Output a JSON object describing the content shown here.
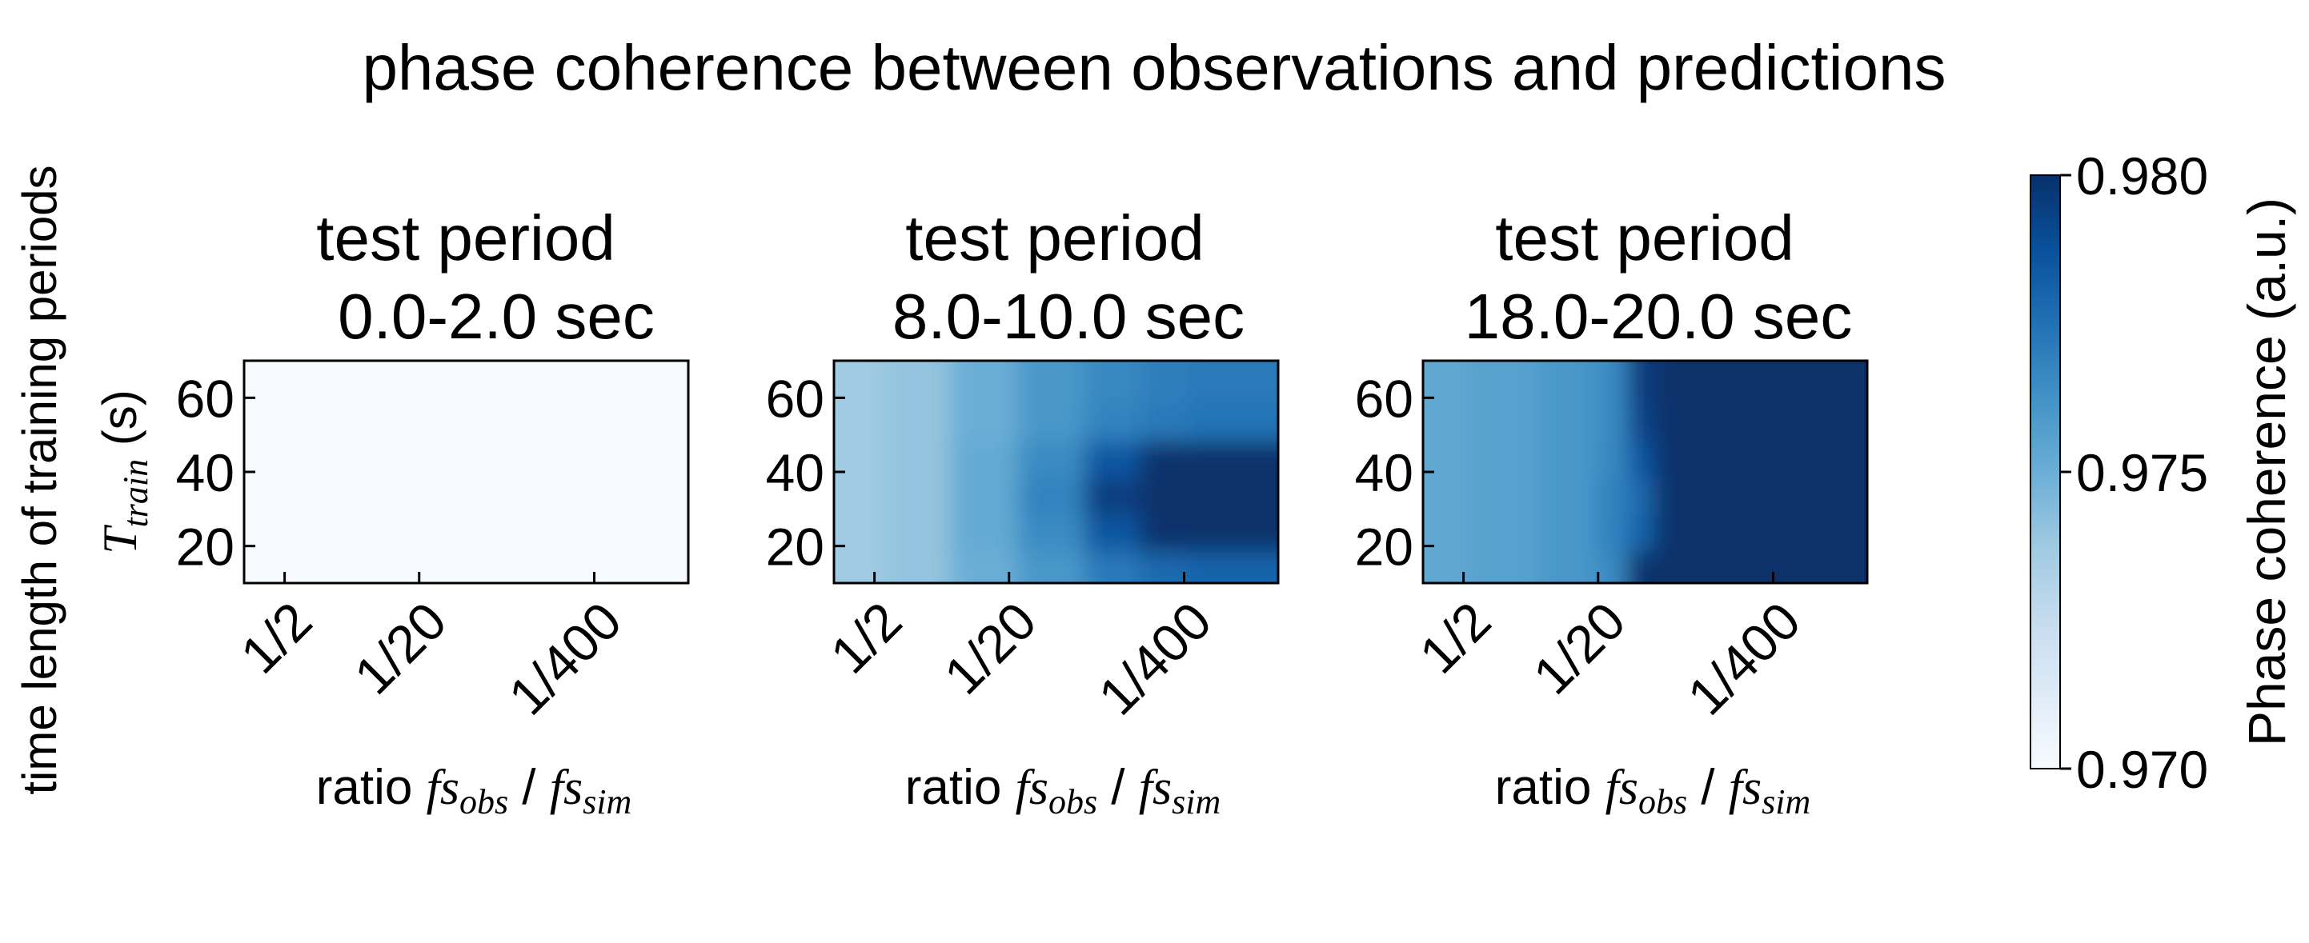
{
  "chart_data": {
    "type": "heatmap",
    "title": "phase coherence between observations and predictions",
    "ylabel": {
      "text": "time length of training periods",
      "var": "T",
      "var_sub": "train",
      "unit": "(s)"
    },
    "xlabel": {
      "prefix": "ratio ",
      "num": "fs",
      "num_sub": "obs",
      "sep": " / ",
      "den": "fs",
      "den_sub": "sim"
    },
    "x_ticks": [
      "1/2",
      "1/20",
      "1/400"
    ],
    "y_ticks": [
      "20",
      "40",
      "60"
    ],
    "ylim": [
      10,
      70
    ],
    "colorbar": {
      "label": "Phase coherence (a.u.)",
      "range": [
        0.97,
        0.98
      ],
      "ticks": [
        "0.970",
        "0.975",
        "0.980"
      ],
      "colormap": "Blues",
      "colors": [
        "#f7fbff",
        "#deebf7",
        "#c6dbef",
        "#9ecae1",
        "#6baed6",
        "#4292c6",
        "#2171b5",
        "#08519c",
        "#08306b"
      ]
    },
    "panels": [
      {
        "title_line1": "test period",
        "title_line2": "0.0-2.0 sec",
        "y": [
          10,
          70
        ],
        "x": [
          "1",
          "1/2",
          "1/20",
          "1/400",
          "1/2000"
        ],
        "values": [
          [
            0.97,
            0.97,
            0.97,
            0.97,
            0.97
          ],
          [
            0.97,
            0.97,
            0.97,
            0.97,
            0.97
          ]
        ]
      },
      {
        "title_line1": "test period",
        "title_line2": "8.0-10.0 sec",
        "y": [
          10,
          20,
          30,
          40,
          50,
          60,
          70
        ],
        "x": [
          "1",
          "1/2",
          "1/6",
          "1/20",
          "1/60",
          "1/200",
          "1/400",
          "1/1000",
          "1/2000"
        ],
        "values": [
          [
            0.9737,
            0.9737,
            0.974,
            0.975,
            0.976,
            0.977,
            0.9775,
            0.9778,
            0.9778
          ],
          [
            0.9737,
            0.9737,
            0.974,
            0.975,
            0.976,
            0.9772,
            0.9778,
            0.978,
            0.978
          ],
          [
            0.9737,
            0.9737,
            0.974,
            0.9752,
            0.9765,
            0.9785,
            0.98,
            0.98,
            0.98
          ],
          [
            0.9737,
            0.9737,
            0.974,
            0.9752,
            0.9768,
            0.9795,
            0.98,
            0.98,
            0.98
          ],
          [
            0.9737,
            0.9737,
            0.974,
            0.9752,
            0.9765,
            0.9785,
            0.98,
            0.98,
            0.98
          ],
          [
            0.9737,
            0.9737,
            0.974,
            0.975,
            0.976,
            0.9768,
            0.9772,
            0.9774,
            0.9774
          ],
          [
            0.9737,
            0.9737,
            0.974,
            0.975,
            0.976,
            0.9766,
            0.977,
            0.9772,
            0.9772
          ]
        ]
      },
      {
        "title_line1": "test period",
        "title_line2": "18.0-20.0 sec",
        "y": [
          10,
          20,
          30,
          40,
          50,
          60,
          70
        ],
        "x": [
          "1",
          "1/2",
          "1/6",
          "1/20",
          "1/40",
          "1/60",
          "1/100",
          "1/200",
          "1/400",
          "1/2000"
        ],
        "values": [
          [
            0.9752,
            0.9753,
            0.9756,
            0.976,
            0.9765,
            0.98,
            0.98,
            0.98,
            0.98,
            0.98
          ],
          [
            0.9752,
            0.9753,
            0.9756,
            0.976,
            0.9765,
            0.98,
            0.98,
            0.98,
            0.98,
            0.98
          ],
          [
            0.9752,
            0.9753,
            0.9756,
            0.976,
            0.9768,
            0.978,
            0.98,
            0.98,
            0.98,
            0.98
          ],
          [
            0.9752,
            0.9753,
            0.9756,
            0.976,
            0.9768,
            0.9778,
            0.98,
            0.98,
            0.98,
            0.98
          ],
          [
            0.9752,
            0.9753,
            0.9756,
            0.976,
            0.9766,
            0.9785,
            0.98,
            0.98,
            0.98,
            0.98
          ],
          [
            0.9752,
            0.9753,
            0.9756,
            0.976,
            0.9765,
            0.9792,
            0.98,
            0.98,
            0.98,
            0.98
          ],
          [
            0.9752,
            0.9753,
            0.9756,
            0.976,
            0.9765,
            0.9795,
            0.98,
            0.98,
            0.98,
            0.98
          ]
        ]
      }
    ]
  }
}
